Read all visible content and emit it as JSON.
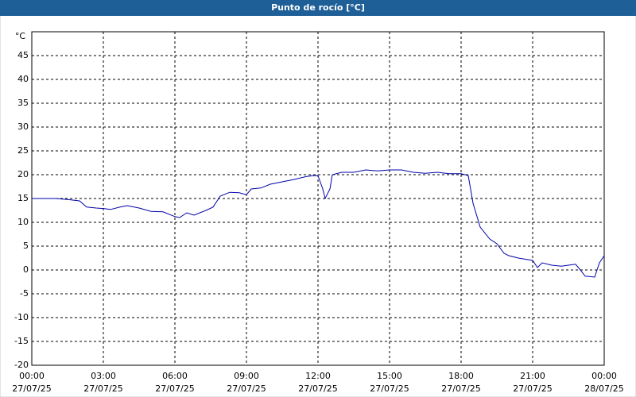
{
  "chart_data": {
    "type": "line",
    "title": "Punto de rocío [°C]",
    "y_label": "°C",
    "x": [
      0,
      0.5,
      1,
      1.5,
      2,
      2.3,
      2.7,
      3,
      3.3,
      3.7,
      4,
      4.5,
      5,
      5.5,
      6,
      6.2,
      6.5,
      6.8,
      7.3,
      7.6,
      7.9,
      8.3,
      8.7,
      9,
      9.2,
      9.6,
      10,
      10.5,
      11,
      11.5,
      11.8,
      12,
      12.2,
      12.3,
      12.5,
      12.6,
      13,
      13.5,
      14,
      14.5,
      15,
      15.5,
      16,
      16.5,
      17,
      17.5,
      18,
      18.3,
      18.5,
      18.8,
      19.2,
      19.5,
      19.8,
      20,
      20.4,
      21,
      21.2,
      21.4,
      21.8,
      22.2,
      22.5,
      22.8,
      23,
      23.2,
      23.6,
      23.8,
      24
    ],
    "series": [
      {
        "name": "Punto de rocío",
        "color": "#0000aa",
        "values": [
          15,
          15,
          15,
          14.8,
          14.5,
          13.2,
          13,
          12.9,
          12.7,
          13.2,
          13.5,
          13,
          12.3,
          12.2,
          11.2,
          11,
          12,
          11.5,
          12.5,
          13.2,
          15.5,
          16.3,
          16.2,
          15.8,
          17,
          17.2,
          18,
          18.5,
          19,
          19.6,
          19.8,
          19.8,
          17,
          15,
          17,
          20,
          20.5,
          20.5,
          21,
          20.8,
          21,
          21,
          20.5,
          20.3,
          20.5,
          20.2,
          20.2,
          19.8,
          14,
          9,
          6.5,
          5.5,
          3.5,
          3,
          2.5,
          2,
          0.5,
          1.5,
          1,
          0.8,
          1,
          1.2,
          0,
          -1.3,
          -1.5,
          1.5,
          3
        ]
      }
    ],
    "xlim": [
      0,
      24
    ],
    "xticks": [
      {
        "value": 0,
        "label": "00:00"
      },
      {
        "value": 3,
        "label": "03:00"
      },
      {
        "value": 6,
        "label": "06:00"
      },
      {
        "value": 9,
        "label": "09:00"
      },
      {
        "value": 12,
        "label": "12:00"
      },
      {
        "value": 15,
        "label": "15:00"
      },
      {
        "value": 18,
        "label": "18:00"
      },
      {
        "value": 21,
        "label": "21:00"
      },
      {
        "value": 24,
        "label": "00:00"
      }
    ],
    "xtick_dates": [
      "27/07/25",
      "27/07/25",
      "27/07/25",
      "27/07/25",
      "27/07/25",
      "27/07/25",
      "27/07/25",
      "27/07/25",
      "28/07/25"
    ],
    "ylim": [
      -20,
      50
    ],
    "yticks": [
      -20,
      -15,
      -10,
      -5,
      0,
      5,
      10,
      15,
      20,
      25,
      30,
      35,
      40,
      45
    ],
    "grid": true
  }
}
